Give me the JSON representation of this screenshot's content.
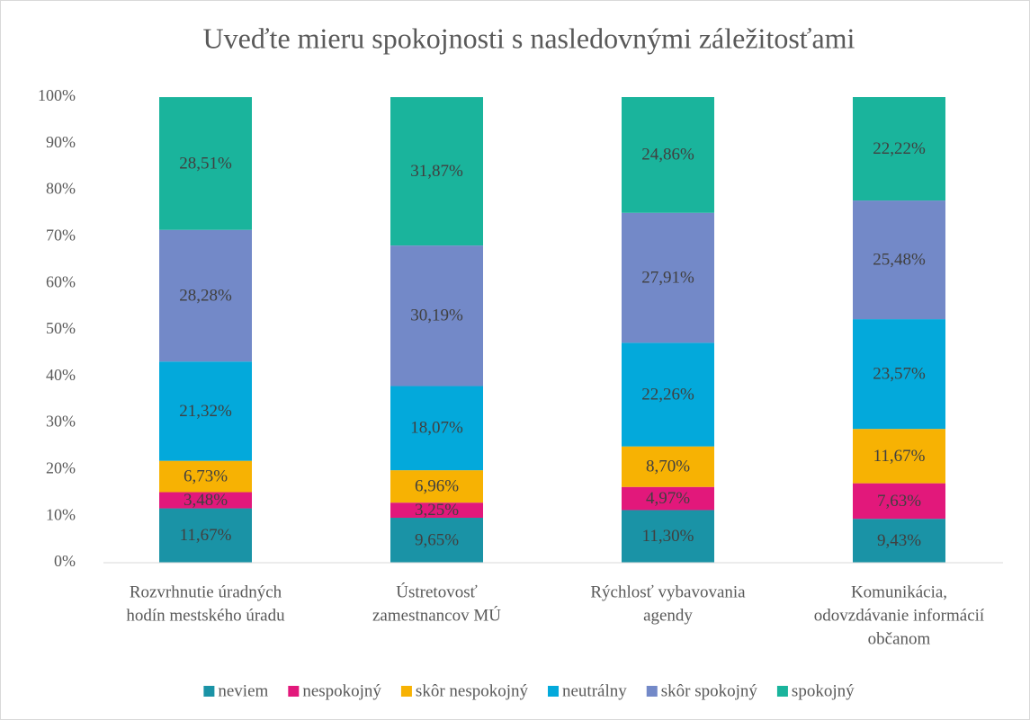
{
  "chart_data": {
    "type": "stacked_bar_100",
    "title": "Uveďte mieru spokojnosti s nasledovnými záležitosťami",
    "categories": [
      [
        "Rozvrhnutie úradných",
        "hodín mestského úradu"
      ],
      [
        "Ústretovosť",
        "zamestnancov MÚ"
      ],
      [
        "Rýchlosť vybavovania",
        "agendy"
      ],
      [
        "Komunikácia,",
        "odovzdávanie informácií",
        "občanom"
      ]
    ],
    "series": [
      {
        "name": "neviem",
        "color": "#1a93a6",
        "values": [
          11.67,
          9.65,
          11.3,
          9.43
        ],
        "value_labels": [
          "11,67%",
          "9,65%",
          "11,30%",
          "9,43%"
        ]
      },
      {
        "name": "nespokojný",
        "color": "#e2187b",
        "values": [
          3.48,
          3.25,
          4.97,
          7.63
        ],
        "value_labels": [
          "3,48%",
          "3,25%",
          "4,97%",
          "7,63%"
        ]
      },
      {
        "name": "skôr nespokojný",
        "color": "#f7b203",
        "values": [
          6.73,
          6.96,
          8.7,
          11.67
        ],
        "value_labels": [
          "6,73%",
          "6,96%",
          "8,70%",
          "11,67%"
        ]
      },
      {
        "name": "neutrálny",
        "color": "#03a9db",
        "values": [
          21.32,
          18.07,
          22.26,
          23.57
        ],
        "value_labels": [
          "21,32%",
          "18,07%",
          "22,26%",
          "23,57%"
        ]
      },
      {
        "name": "skôr spokojný",
        "color": "#7389c8",
        "values": [
          28.28,
          30.19,
          27.91,
          25.48
        ],
        "value_labels": [
          "28,28%",
          "30,19%",
          "27,91%",
          "25,48%"
        ]
      },
      {
        "name": "spokojný",
        "color": "#1ab49c",
        "values": [
          28.51,
          31.87,
          24.86,
          22.22
        ],
        "value_labels": [
          "28,51%",
          "31,87%",
          "24,86%",
          "22,22%"
        ]
      }
    ],
    "ylim": [
      0,
      100
    ],
    "yticks": [
      {
        "value": 0,
        "label": "0%"
      },
      {
        "value": 10,
        "label": "10%"
      },
      {
        "value": 20,
        "label": "20%"
      },
      {
        "value": 30,
        "label": "30%"
      },
      {
        "value": 40,
        "label": "40%"
      },
      {
        "value": 50,
        "label": "50%"
      },
      {
        "value": 60,
        "label": "60%"
      },
      {
        "value": 70,
        "label": "70%"
      },
      {
        "value": 80,
        "label": "80%"
      },
      {
        "value": 90,
        "label": "90%"
      },
      {
        "value": 100,
        "label": "100%"
      }
    ],
    "grid": false,
    "legend": "bottom"
  }
}
